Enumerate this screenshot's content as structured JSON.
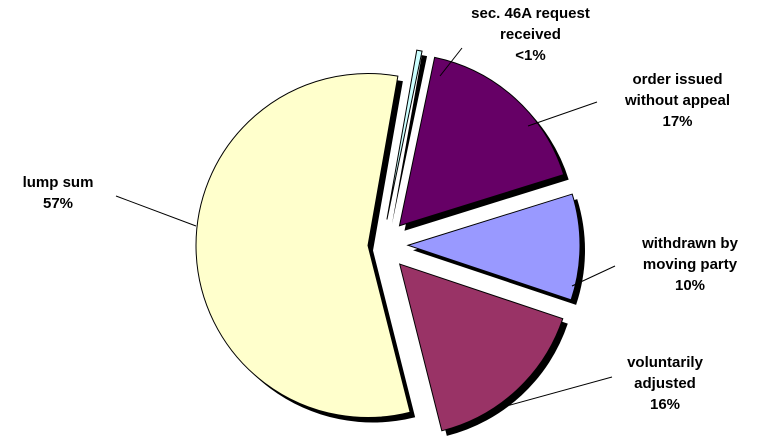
{
  "chart_data": {
    "type": "pie",
    "categories": [
      "sec. 46A request received",
      "order issued without appeal",
      "withdrawn by moving party",
      "voluntarily adjusted",
      "lump sum"
    ],
    "values": [
      0.5,
      17,
      10,
      16,
      57
    ],
    "value_labels": [
      "<1%",
      "17%",
      "10%",
      "16%",
      "57%"
    ],
    "colors": [
      "#ccffff",
      "#660066",
      "#9999ff",
      "#993366",
      "#ffffcc"
    ]
  }
}
